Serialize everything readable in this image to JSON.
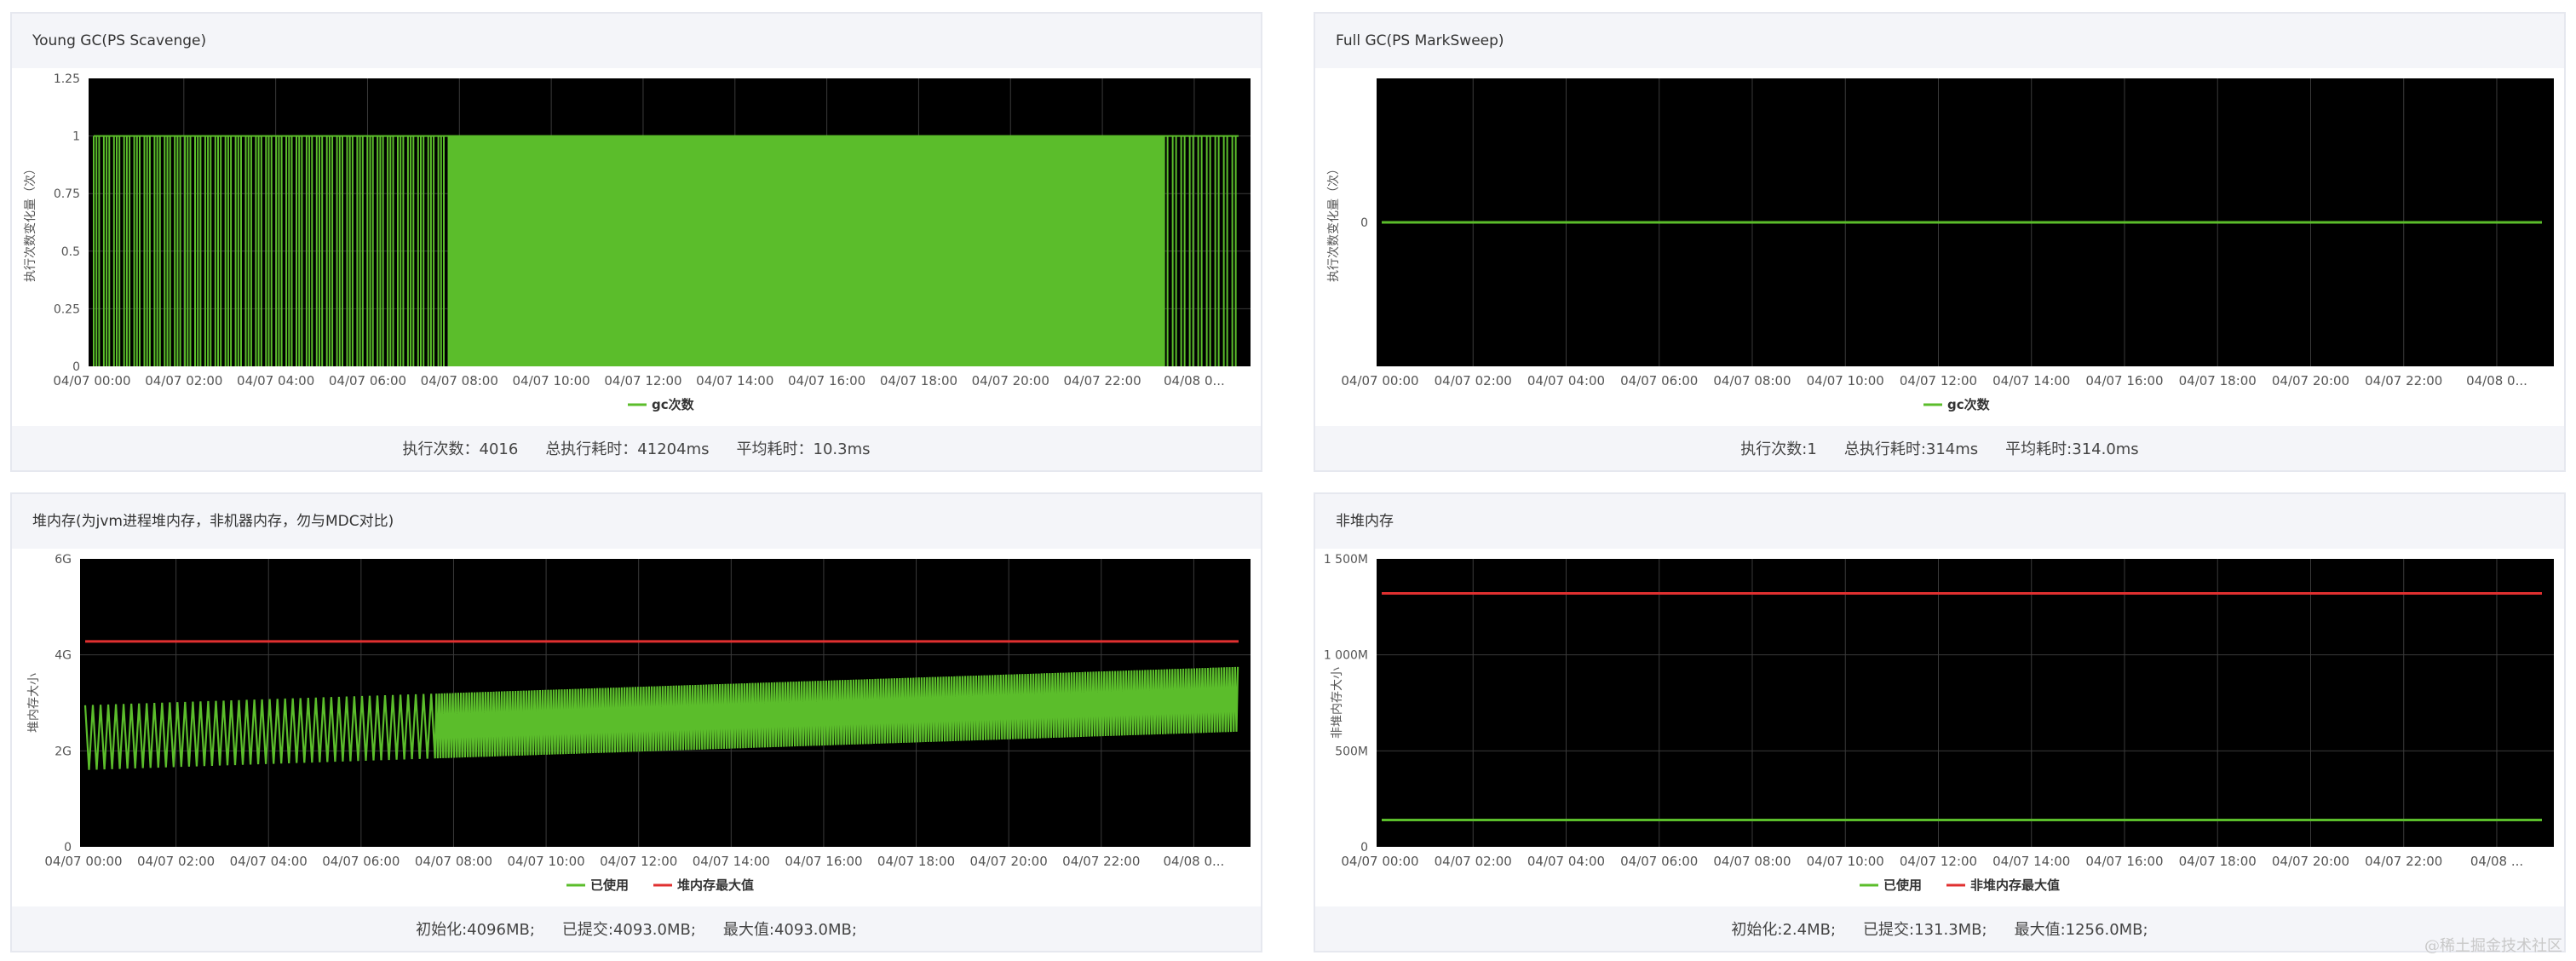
{
  "watermark": "@稀土掘金技术社区",
  "panels": [
    {
      "id": "young-gc",
      "title": "Young GC(PS Scavenge)",
      "footer": [
        "执行次数：4016",
        "总执行耗时：41204ms",
        "平均耗时：10.3ms"
      ],
      "chart_data": {
        "type": "line",
        "ylabel": "执行次数变化量（次）",
        "yticks": [
          "0",
          "0.25",
          "0.5",
          "0.75",
          "1",
          "1.25"
        ],
        "ylim": [
          0,
          1.25
        ],
        "xticks": [
          "04/07 00:00",
          "04/07 02:00",
          "04/07 04:00",
          "04/07 06:00",
          "04/07 08:00",
          "04/07 10:00",
          "04/07 12:00",
          "04/07 14:00",
          "04/07 16:00",
          "04/07 18:00",
          "04/07 20:00",
          "04/07 22:00",
          "04/08 0..."
        ],
        "legend": "bottom",
        "series": [
          {
            "name": "gc次数",
            "color": "#5bbd2b",
            "pattern": "binary-spikes",
            "low": 0,
            "high": 1
          }
        ]
      }
    },
    {
      "id": "full-gc",
      "title": "Full GC(PS MarkSweep)",
      "footer": [
        "执行次数:1",
        "总执行耗时:314ms",
        "平均耗时:314.0ms"
      ],
      "chart_data": {
        "type": "line",
        "ylabel": "执行次数变化量（次）",
        "yticks": [
          "0"
        ],
        "ylim": [
          -1,
          1
        ],
        "xticks": [
          "04/07 00:00",
          "04/07 02:00",
          "04/07 04:00",
          "04/07 06:00",
          "04/07 08:00",
          "04/07 10:00",
          "04/07 12:00",
          "04/07 14:00",
          "04/07 16:00",
          "04/07 18:00",
          "04/07 20:00",
          "04/07 22:00",
          "04/08 0..."
        ],
        "legend": "bottom",
        "series": [
          {
            "name": "gc次数",
            "color": "#5bbd2b",
            "constant": 0
          }
        ]
      }
    },
    {
      "id": "heap-memory",
      "title": "堆内存(为jvm进程堆内存，非机器内存，勿与MDC对比)",
      "footer": [
        "初始化:4096MB;",
        "已提交:4093.0MB;",
        "最大值:4093.0MB;"
      ],
      "chart_data": {
        "type": "line",
        "ylabel": "堆内存大小",
        "yticks": [
          "0",
          "2G",
          "4G",
          "6G"
        ],
        "ylim": [
          0,
          6
        ],
        "xticks": [
          "04/07 00:00",
          "04/07 02:00",
          "04/07 04:00",
          "04/07 06:00",
          "04/07 08:00",
          "04/07 10:00",
          "04/07 12:00",
          "04/07 14:00",
          "04/07 16:00",
          "04/07 18:00",
          "04/07 20:00",
          "04/07 22:00",
          "04/08 0..."
        ],
        "legend": "bottom",
        "series": [
          {
            "name": "已使用",
            "color": "#5bbd2b",
            "pattern": "oscillating-band",
            "low_start": 1.6,
            "low_end": 2.4,
            "high_start": 2.95,
            "high_end": 3.75
          },
          {
            "name": "堆内存最大值",
            "color": "#e03030",
            "constant": 4.28
          }
        ]
      }
    },
    {
      "id": "non-heap-memory",
      "title": "非堆内存",
      "footer": [
        "初始化:2.4MB;",
        "已提交:131.3MB;",
        "最大值:1256.0MB;"
      ],
      "chart_data": {
        "type": "line",
        "ylabel": "非堆内存大小",
        "yticks": [
          "0",
          "500M",
          "1 000M",
          "1 500M"
        ],
        "ylim": [
          0,
          1500
        ],
        "xticks": [
          "04/07 00:00",
          "04/07 02:00",
          "04/07 04:00",
          "04/07 06:00",
          "04/07 08:00",
          "04/07 10:00",
          "04/07 12:00",
          "04/07 14:00",
          "04/07 16:00",
          "04/07 18:00",
          "04/07 20:00",
          "04/07 22:00",
          "04/08 ..."
        ],
        "legend": "bottom",
        "series": [
          {
            "name": "已使用",
            "color": "#5bbd2b",
            "constant": 140
          },
          {
            "name": "非堆内存最大值",
            "color": "#e03030",
            "constant": 1320
          }
        ]
      }
    }
  ]
}
